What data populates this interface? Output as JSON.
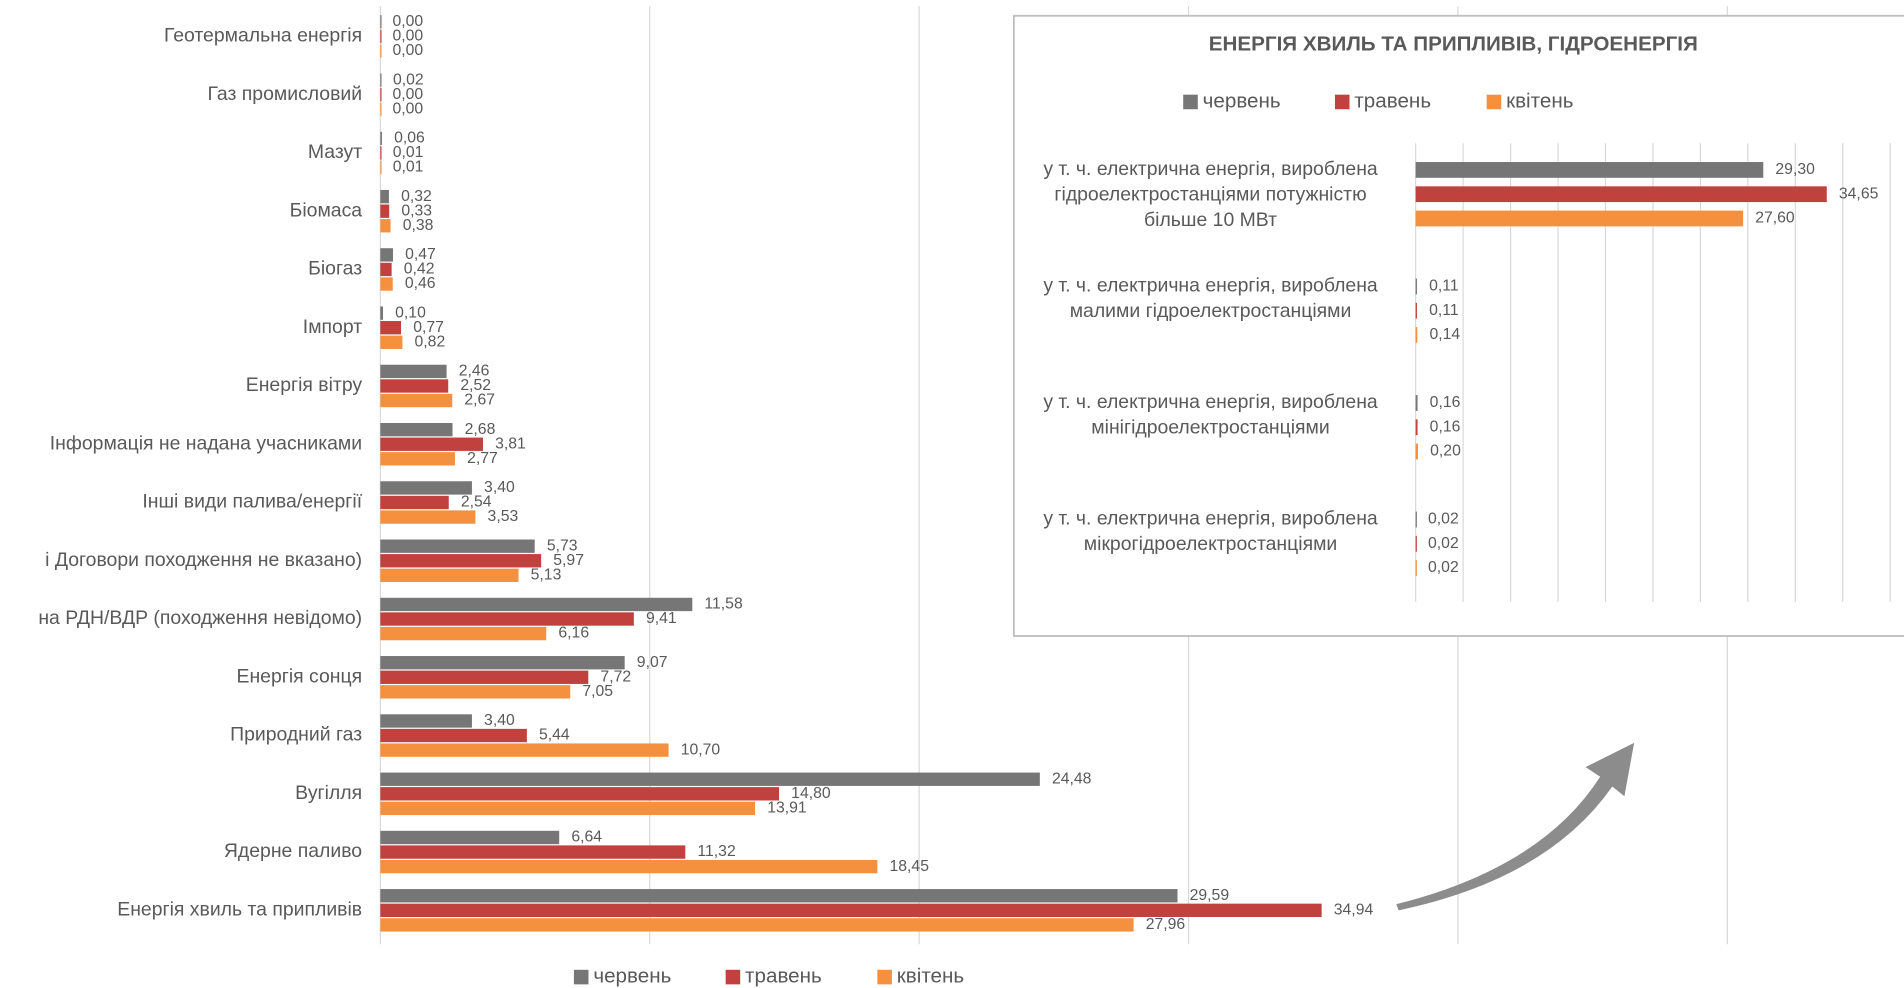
{
  "chart_data": [
    {
      "type": "bar",
      "orientation": "horizontal",
      "categories": [
        "Геотермальна енергія",
        "Газ промисловий",
        "Мазут",
        "Біомаса",
        "Біогаз",
        "Імпорт",
        "Енергія вітру",
        "Інформація не надана учасниками",
        "Інші види палива/енергії",
        "і Договори походження не вказано)",
        "на РДН/ВДР (походження невідомо)",
        "Енергія сонця",
        "Природний газ",
        "Вугілля",
        "Ядерне паливо",
        "Енергія хвиль та припливів"
      ],
      "series": [
        {
          "name": "червень",
          "color": "#767676",
          "values": [
            0,
            0.02,
            0.06,
            0.32,
            0.47,
            0.1,
            2.46,
            2.68,
            3.4,
            5.73,
            11.58,
            9.07,
            3.4,
            24.48,
            6.64,
            29.59
          ],
          "value_labels": [
            "0,00",
            "0,02",
            "0,06",
            "0,32",
            "0,47",
            "0,10",
            "2,46",
            "2,68",
            "3,40",
            "5,73",
            "11,58",
            "9,07",
            "3,40",
            "24,48",
            "6,64",
            "29,59"
          ]
        },
        {
          "name": "травень",
          "color": "#c0413e",
          "values": [
            0,
            0,
            0.01,
            0.33,
            0.42,
            0.77,
            2.52,
            3.81,
            2.54,
            5.97,
            9.41,
            7.72,
            5.44,
            14.8,
            11.32,
            34.94
          ],
          "value_labels": [
            "0,00",
            "0,00",
            "0,01",
            "0,33",
            "0,42",
            "0,77",
            "2,52",
            "3,81",
            "2,54",
            "5,97",
            "9,41",
            "7,72",
            "5,44",
            "14,80",
            "11,32",
            "34,94"
          ]
        },
        {
          "name": "квітень",
          "color": "#f5913e",
          "values": [
            0,
            0,
            0.01,
            0.38,
            0.46,
            0.82,
            2.67,
            2.77,
            3.53,
            5.13,
            6.16,
            7.05,
            10.7,
            13.91,
            18.45,
            27.96
          ],
          "value_labels": [
            "0,00",
            "0,00",
            "0,01",
            "0,38",
            "0,46",
            "0,82",
            "2,67",
            "2,77",
            "3,53",
            "5,13",
            "6,16",
            "7,05",
            "10,70",
            "13,91",
            "18,45",
            "27,96"
          ]
        }
      ],
      "xlim": [
        0,
        56
      ],
      "xticks": [
        0,
        10,
        20,
        30,
        40,
        50
      ],
      "grid": true,
      "legend": "bottom"
    },
    {
      "type": "bar",
      "orientation": "horizontal",
      "title": "ЕНЕРГІЯ ХВИЛЬ ТА ПРИПЛИВІВ, ГІДРОЕНЕРГІЯ",
      "categories": [
        [
          "у т. ч. електрична енергія, вироблена",
          "гідроелектростанціями потужністю",
          "більше 10 МВт"
        ],
        [
          "у т. ч. електрична енергія, вироблена",
          "малими гідроелектростанціями"
        ],
        [
          "у т. ч. електрична енергія, вироблена",
          "мінігідроелектростанціями"
        ],
        [
          "у т. ч. електрична енергія, вироблена",
          "мікрогідроелектростанціями"
        ]
      ],
      "series": [
        {
          "name": "червень",
          "color": "#767676",
          "values": [
            29.3,
            0.11,
            0.16,
            0.02
          ],
          "value_labels": [
            "29,30",
            "0,11",
            "0,16",
            "0,02"
          ]
        },
        {
          "name": "травень",
          "color": "#c0413e",
          "values": [
            34.65,
            0.11,
            0.16,
            0.02
          ],
          "value_labels": [
            "34,65",
            "0,11",
            "0,16",
            "0,02"
          ]
        },
        {
          "name": "квітень",
          "color": "#f5913e",
          "values": [
            27.6,
            0.14,
            0.2,
            0.02
          ],
          "value_labels": [
            "27,60",
            "0,14",
            "0,20",
            "0,02"
          ]
        }
      ],
      "xlim": [
        0,
        40
      ],
      "xticks": [
        0,
        4,
        8,
        12,
        16,
        20,
        24,
        28,
        32,
        36,
        40
      ],
      "grid": true,
      "legend": "top"
    }
  ]
}
